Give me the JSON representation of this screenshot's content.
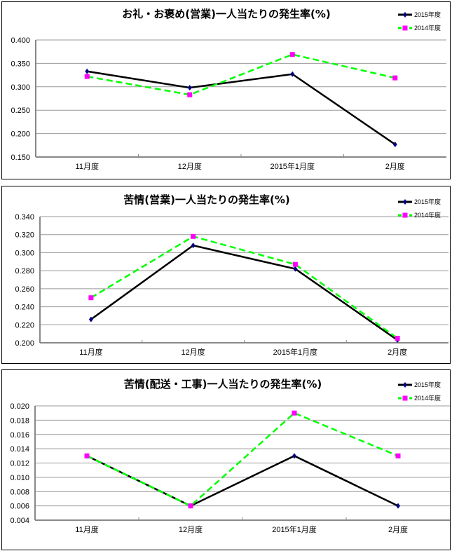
{
  "chart_data": [
    {
      "type": "line",
      "title": "お礼・お褒め(営業)一人当たりの発生率(%)",
      "categories": [
        "11月度",
        "12月度",
        "2015年1月度",
        "2月度"
      ],
      "yticks": [
        "0.150",
        "0.200",
        "0.250",
        "0.300",
        "0.350",
        "0.400"
      ],
      "ylim": [
        0.15,
        0.4
      ],
      "grid": true,
      "legend_position": "top-right",
      "series": [
        {
          "name": "2015年度",
          "values": [
            0.333,
            0.298,
            0.327,
            0.177
          ],
          "color": "#000000",
          "marker": "diamond",
          "marker_color": "#000080",
          "dash": false
        },
        {
          "name": "2014年度",
          "values": [
            0.322,
            0.283,
            0.369,
            0.319
          ],
          "color": "#00ff00",
          "marker": "square",
          "marker_color": "#ff00ff",
          "dash": true
        }
      ]
    },
    {
      "type": "line",
      "title": "苦情(営業)一人当たりの発生率(%)",
      "categories": [
        "11月度",
        "12月度",
        "2015年1月度",
        "2月度"
      ],
      "yticks": [
        "0.200",
        "0.220",
        "0.240",
        "0.260",
        "0.280",
        "0.300",
        "0.320",
        "0.340"
      ],
      "ylim": [
        0.2,
        0.34
      ],
      "grid": true,
      "legend_position": "top-right",
      "series": [
        {
          "name": "2015年度",
          "values": [
            0.226,
            0.308,
            0.282,
            0.203
          ],
          "color": "#000000",
          "marker": "diamond",
          "marker_color": "#000080",
          "dash": false
        },
        {
          "name": "2014年度",
          "values": [
            0.25,
            0.318,
            0.287,
            0.205
          ],
          "color": "#00ff00",
          "marker": "square",
          "marker_color": "#ff00ff",
          "dash": true
        }
      ]
    },
    {
      "type": "line",
      "title": "苦情(配送・工事)一人当たりの発生率(%)",
      "categories": [
        "11月度",
        "12月度",
        "2015年1月度",
        "2月度"
      ],
      "yticks": [
        "0.004",
        "0.006",
        "0.008",
        "0.010",
        "0.012",
        "0.014",
        "0.016",
        "0.018",
        "0.020"
      ],
      "ylim": [
        0.004,
        0.02
      ],
      "grid": true,
      "legend_position": "top-right",
      "series": [
        {
          "name": "2015年度",
          "values": [
            0.013,
            0.006,
            0.013,
            0.006
          ],
          "color": "#000000",
          "marker": "diamond",
          "marker_color": "#000080",
          "dash": false
        },
        {
          "name": "2014年度",
          "values": [
            0.013,
            0.006,
            0.019,
            0.013
          ],
          "color": "#00ff00",
          "marker": "square",
          "marker_color": "#ff00ff",
          "dash": true
        }
      ]
    }
  ]
}
